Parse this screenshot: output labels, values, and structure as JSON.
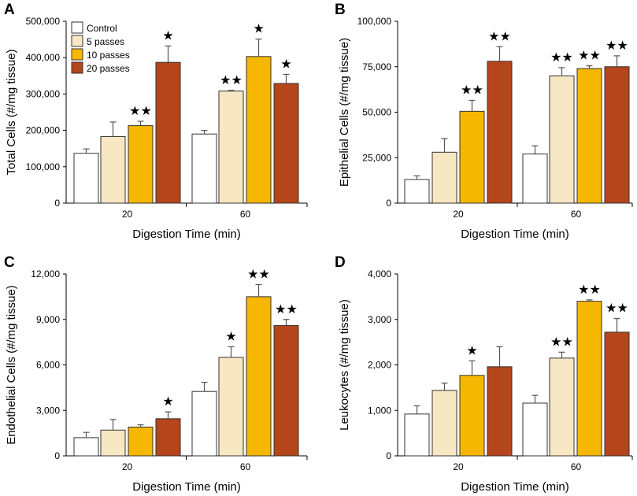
{
  "colors": {
    "control": "#ffffff",
    "passes5": "#f7e7c2",
    "passes10": "#f6b700",
    "passes20": "#b5451b",
    "outline": "#333333"
  },
  "chart_data": [
    {
      "panel": "A",
      "type": "bar",
      "ylabel": "Total Cells (#/mg tissue)",
      "xlabel": "Digestion Time (min)",
      "categories": [
        "20",
        "60"
      ],
      "ylim": [
        0,
        500000
      ],
      "yticks": [
        0,
        100000,
        200000,
        300000,
        400000,
        500000
      ],
      "ytick_labels": [
        "0",
        "100,000",
        "200,000",
        "300,000",
        "400,000",
        "500,000"
      ],
      "legend": {
        "placement": "top-left",
        "entries": [
          "Control",
          "5 passes",
          "10 passes",
          "20 passes"
        ]
      },
      "series": [
        {
          "name": "Control",
          "values": [
            137000,
            190000
          ],
          "errors": [
            12000,
            10000
          ],
          "stars": [
            "",
            ""
          ]
        },
        {
          "name": "5 passes",
          "values": [
            183000,
            308000
          ],
          "errors": [
            40000,
            2000
          ],
          "stars": [
            "",
            "★★"
          ]
        },
        {
          "name": "10 passes",
          "values": [
            213000,
            403000
          ],
          "errors": [
            12000,
            48000
          ],
          "stars": [
            "★★",
            "★"
          ]
        },
        {
          "name": "20 passes",
          "values": [
            387000,
            329000
          ],
          "errors": [
            45000,
            25000
          ],
          "stars": [
            "★",
            "★"
          ]
        }
      ]
    },
    {
      "panel": "B",
      "type": "bar",
      "ylabel": "Epithelial Cells (#/mg tissue)",
      "xlabel": "Digestion Time (min)",
      "categories": [
        "20",
        "60"
      ],
      "ylim": [
        0,
        100000
      ],
      "yticks": [
        0,
        25000,
        50000,
        75000,
        100000
      ],
      "ytick_labels": [
        "0",
        "25,000",
        "50,000",
        "75,000",
        "100,000"
      ],
      "series": [
        {
          "name": "Control",
          "values": [
            13000,
            27000
          ],
          "errors": [
            2000,
            4500
          ],
          "stars": [
            "",
            ""
          ]
        },
        {
          "name": "5 passes",
          "values": [
            28000,
            70000
          ],
          "errors": [
            7500,
            4500
          ],
          "stars": [
            "",
            "★★"
          ]
        },
        {
          "name": "10 passes",
          "values": [
            50500,
            74000
          ],
          "errors": [
            6000,
            1500
          ],
          "stars": [
            "★★",
            "★★"
          ]
        },
        {
          "name": "20 passes",
          "values": [
            78000,
            75000
          ],
          "errors": [
            8000,
            6000
          ],
          "stars": [
            "★★",
            "★★"
          ]
        }
      ]
    },
    {
      "panel": "C",
      "type": "bar",
      "ylabel": "Endothelial Cells (#/mg tissue)",
      "xlabel": "Digestion Time (min)",
      "categories": [
        "20",
        "60"
      ],
      "ylim": [
        0,
        12000
      ],
      "yticks": [
        0,
        3000,
        6000,
        9000,
        12000
      ],
      "ytick_labels": [
        "0",
        "3,000",
        "6,000",
        "9,000",
        "12,000"
      ],
      "series": [
        {
          "name": "Control",
          "values": [
            1200,
            4250
          ],
          "errors": [
            350,
            600
          ],
          "stars": [
            "",
            ""
          ]
        },
        {
          "name": "5 passes",
          "values": [
            1700,
            6500
          ],
          "errors": [
            700,
            700
          ],
          "stars": [
            "",
            "★"
          ]
        },
        {
          "name": "10 passes",
          "values": [
            1900,
            10500
          ],
          "errors": [
            150,
            800
          ],
          "stars": [
            "",
            "★★"
          ]
        },
        {
          "name": "20 passes",
          "values": [
            2450,
            8600
          ],
          "errors": [
            450,
            400
          ],
          "stars": [
            "★",
            "★★"
          ]
        }
      ]
    },
    {
      "panel": "D",
      "type": "bar",
      "ylabel": "Leukocytes (#/mg tissue)",
      "xlabel": "Digestion Time (min)",
      "categories": [
        "20",
        "60"
      ],
      "ylim": [
        0,
        4000
      ],
      "yticks": [
        0,
        1000,
        2000,
        3000,
        4000
      ],
      "ytick_labels": [
        "0",
        "1,000",
        "2,000",
        "3,000",
        "4,000"
      ],
      "series": [
        {
          "name": "Control",
          "values": [
            920,
            1160
          ],
          "errors": [
            180,
            170
          ],
          "stars": [
            "",
            ""
          ]
        },
        {
          "name": "5 passes",
          "values": [
            1440,
            2150
          ],
          "errors": [
            160,
            130
          ],
          "stars": [
            "",
            "★★"
          ]
        },
        {
          "name": "10 passes",
          "values": [
            1770,
            3400
          ],
          "errors": [
            320,
            30
          ],
          "stars": [
            "★",
            "★★"
          ]
        },
        {
          "name": "20 passes",
          "values": [
            1960,
            2720
          ],
          "errors": [
            440,
            300
          ],
          "stars": [
            "",
            "★★"
          ]
        }
      ]
    }
  ]
}
